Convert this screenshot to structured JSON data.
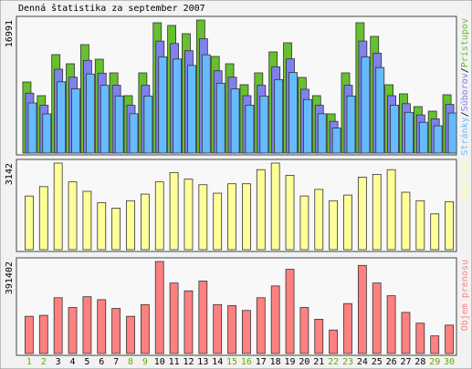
{
  "title": "Denná štatistika za september 2007",
  "legend_separator": "/",
  "chart_data": [
    {
      "type": "bar3",
      "ylim": [
        0,
        16991
      ],
      "yticks": [
        16991
      ],
      "series": [
        {
          "name": "Prístupov",
          "color": "#66c030",
          "values": [
            9079,
            7333,
            12571,
            11407,
            13851,
            11989,
            10243,
            7333,
            10243,
            16645,
            16296,
            15248,
            16991,
            12338,
            11407,
            8730,
            10243,
            12920,
            14084,
            9661,
            7333,
            5005,
            10243,
            16645,
            14899,
            8730,
            7566,
            5936,
            5354,
            7450
          ]
        },
        {
          "name": "Súborov",
          "color": "#8080ee",
          "values": [
            8000,
            6450,
            11060,
            10040,
            12190,
            10550,
            9010,
            6450,
            9010,
            14650,
            14340,
            13420,
            14950,
            10860,
            10040,
            7680,
            9010,
            11370,
            12390,
            8500,
            6450,
            4400,
            9010,
            14650,
            13110,
            7680,
            6660,
            5220,
            4710,
            6560
          ]
        },
        {
          "name": "Stránky",
          "color": "#66bbff",
          "values": [
            7100,
            5700,
            9800,
            8900,
            10800,
            9350,
            7990,
            5720,
            7990,
            12980,
            12710,
            11890,
            13250,
            9620,
            8900,
            6810,
            7990,
            10080,
            10990,
            7540,
            5720,
            3900,
            7990,
            12980,
            11620,
            6810,
            5900,
            4630,
            4180,
            5810
          ]
        }
      ]
    },
    {
      "type": "bar",
      "ylim": [
        0,
        3142
      ],
      "yticks": [
        3142
      ],
      "series": [
        {
          "name": "Návštev",
          "color": "#ffff99",
          "values": [
            1947,
            2288,
            3142,
            2459,
            2117,
            1708,
            1503,
            1776,
            2015,
            2459,
            2800,
            2561,
            2356,
            2049,
            2391,
            2391,
            2903,
            3142,
            2698,
            1947,
            2186,
            1776,
            1981,
            2630,
            2732,
            2903,
            2083,
            1776,
            1298,
            1742
          ]
        }
      ]
    },
    {
      "type": "bar",
      "ylim": [
        0,
        391402
      ],
      "yticks": [
        391402
      ],
      "series": [
        {
          "name": "Objem prenosu",
          "color": "#ff8080",
          "values": [
            158232,
            162396,
            237348,
            195708,
            241512,
            229020,
            191544,
            158232,
            208200,
            391402,
            299808,
            266496,
            308136,
            208200,
            204036,
            183216,
            237348,
            287316,
            358104,
            195708,
            145740,
            99936,
            212364,
            374760,
            299808,
            245676,
            174888,
            129084,
            74952,
            120756
          ]
        }
      ],
      "categories": [
        "1",
        "2",
        "3",
        "4",
        "5",
        "6",
        "7",
        "8",
        "9",
        "10",
        "11",
        "12",
        "13",
        "14",
        "15",
        "16",
        "17",
        "18",
        "19",
        "20",
        "21",
        "22",
        "23",
        "24",
        "25",
        "26",
        "27",
        "28",
        "29",
        "30"
      ],
      "category_colors": [
        "#66aa00",
        "#66aa00",
        "#000000",
        "#000000",
        "#000000",
        "#000000",
        "#000000",
        "#66aa00",
        "#66aa00",
        "#000000",
        "#000000",
        "#000000",
        "#000000",
        "#000000",
        "#66aa00",
        "#66aa00",
        "#000000",
        "#000000",
        "#000000",
        "#000000",
        "#000000",
        "#66aa00",
        "#66aa00",
        "#000000",
        "#000000",
        "#000000",
        "#000000",
        "#000000",
        "#66aa00",
        "#66aa00"
      ]
    }
  ]
}
